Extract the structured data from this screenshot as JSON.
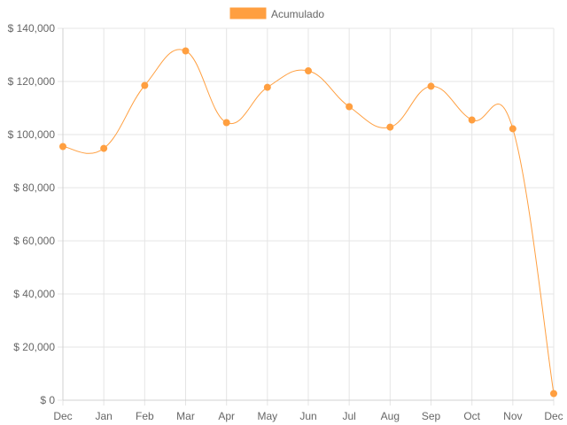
{
  "chart_data": {
    "type": "line",
    "categories": [
      "Dec",
      "Jan",
      "Feb",
      "Mar",
      "Apr",
      "May",
      "Jun",
      "Jul",
      "Aug",
      "Sep",
      "Oct",
      "Nov",
      "Dec"
    ],
    "series": [
      {
        "name": "Acumulado",
        "color": "#ff9f40",
        "values": [
          95500,
          94800,
          118500,
          131500,
          104500,
          117800,
          124000,
          110500,
          102800,
          118200,
          105500,
          102200,
          2500
        ]
      }
    ],
    "y_tick_labels": [
      "$ 0",
      "$ 20,000",
      "$ 40,000",
      "$ 60,000",
      "$ 80,000",
      "$ 100,000",
      "$ 120,000",
      "$ 140,000"
    ],
    "ylim": [
      0,
      140000
    ],
    "grid": true,
    "legend_position": "top-center",
    "curve": "smooth"
  }
}
